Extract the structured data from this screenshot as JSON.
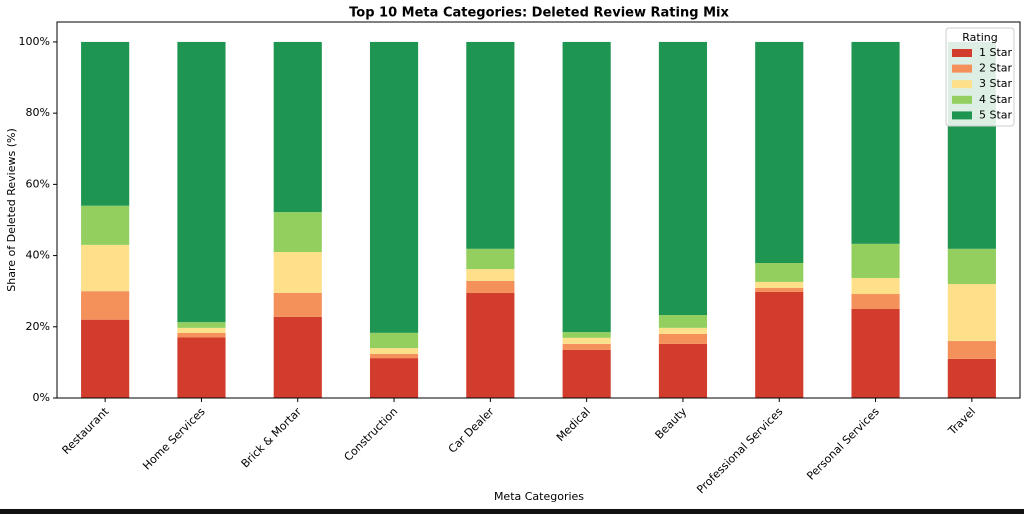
{
  "chart_data": {
    "type": "stacked_bar",
    "title": "Top 10 Meta Categories: Deleted Review Rating Mix",
    "x_label": "Meta Categories",
    "y_label": "Share of Deleted Reviews (%)",
    "categories": [
      "Restaurant",
      "Home Services",
      "Brick & Mortar",
      "Construction",
      "Car Dealer",
      "Medical",
      "Beauty",
      "Professional Services",
      "Personal Services",
      "Travel"
    ],
    "series": [
      {
        "name": "1 Star",
        "color": "#d13c2c",
        "values": [
          22,
          17,
          22.8,
          11.2,
          29.5,
          13.5,
          15.2,
          29.8,
          25,
          11
        ]
      },
      {
        "name": "2 Star",
        "color": "#f4915a",
        "values": [
          8,
          1.3,
          6.7,
          1.2,
          3.4,
          1.7,
          2.8,
          1.1,
          4.2,
          5
        ]
      },
      {
        "name": "3 Star",
        "color": "#fee08b",
        "values": [
          13,
          1.4,
          11.5,
          1.6,
          3.3,
          1.7,
          1.7,
          1.7,
          4.5,
          16
        ]
      },
      {
        "name": "4 Star",
        "color": "#93cf5f",
        "values": [
          11,
          1.6,
          11.2,
          4.3,
          5.7,
          1.6,
          3.6,
          5.3,
          9.6,
          9.9
        ]
      },
      {
        "name": "5 Star",
        "color": "#1e9651",
        "values": [
          46,
          78.7,
          47.8,
          81.7,
          58.1,
          81.5,
          76.7,
          62.1,
          56.7,
          58.1
        ]
      }
    ],
    "ylim": [
      0,
      105.6
    ],
    "yticks": [
      {
        "value": 0,
        "label": "0%"
      },
      {
        "value": 20,
        "label": "20%"
      },
      {
        "value": 40,
        "label": "40%"
      },
      {
        "value": 60,
        "label": "60%"
      },
      {
        "value": 80,
        "label": "80%"
      },
      {
        "value": 100,
        "label": "100%"
      }
    ],
    "grid": false,
    "legend_title": "Rating",
    "legend_position": "upper right"
  }
}
